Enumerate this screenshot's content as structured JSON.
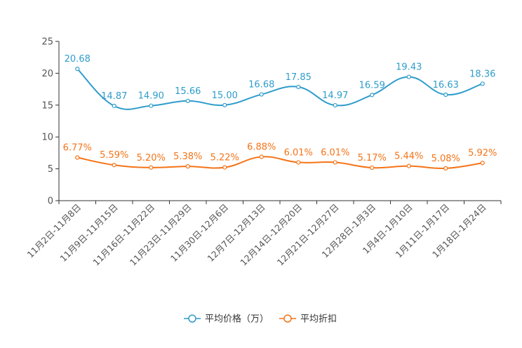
{
  "chart_data": {
    "type": "line",
    "title": "",
    "xlabel": "",
    "ylabel": "",
    "ylim": [
      0,
      25
    ],
    "yticks": [
      0,
      5,
      10,
      15,
      20,
      25
    ],
    "grid": false,
    "legend_position": "bottom-center",
    "categories": [
      "11月2日-11月8日",
      "11月9日-11月15日",
      "11月16日-11月22日",
      "11月23日-11月29日",
      "11月30日-12月6日",
      "12月7日-12月13日",
      "12月14日-12月20日",
      "12月21日-12月27日",
      "12月28日-1月3日",
      "1月4日-1月10日",
      "1月11日-1月17日",
      "1月18日-1月24日"
    ],
    "series": [
      {
        "name": "平均价格（万）",
        "color": "#2f9ccb",
        "values": [
          20.68,
          14.87,
          14.9,
          15.66,
          15.0,
          16.68,
          17.85,
          14.97,
          16.59,
          19.43,
          16.63,
          18.36
        ],
        "labels": [
          "20.68",
          "14.87",
          "14.90",
          "15.66",
          "15.00",
          "16.68",
          "17.85",
          "14.97",
          "16.59",
          "19.43",
          "16.63",
          "18.36"
        ]
      },
      {
        "name": "平均折扣",
        "color": "#f47418",
        "values": [
          6.77,
          5.59,
          5.2,
          5.38,
          5.22,
          6.88,
          6.01,
          6.01,
          5.17,
          5.44,
          5.08,
          5.92
        ],
        "labels": [
          "6.77%",
          "5.59%",
          "5.20%",
          "5.38%",
          "5.22%",
          "6.88%",
          "6.01%",
          "6.01%",
          "5.17%",
          "5.44%",
          "5.08%",
          "5.92%"
        ]
      }
    ]
  }
}
